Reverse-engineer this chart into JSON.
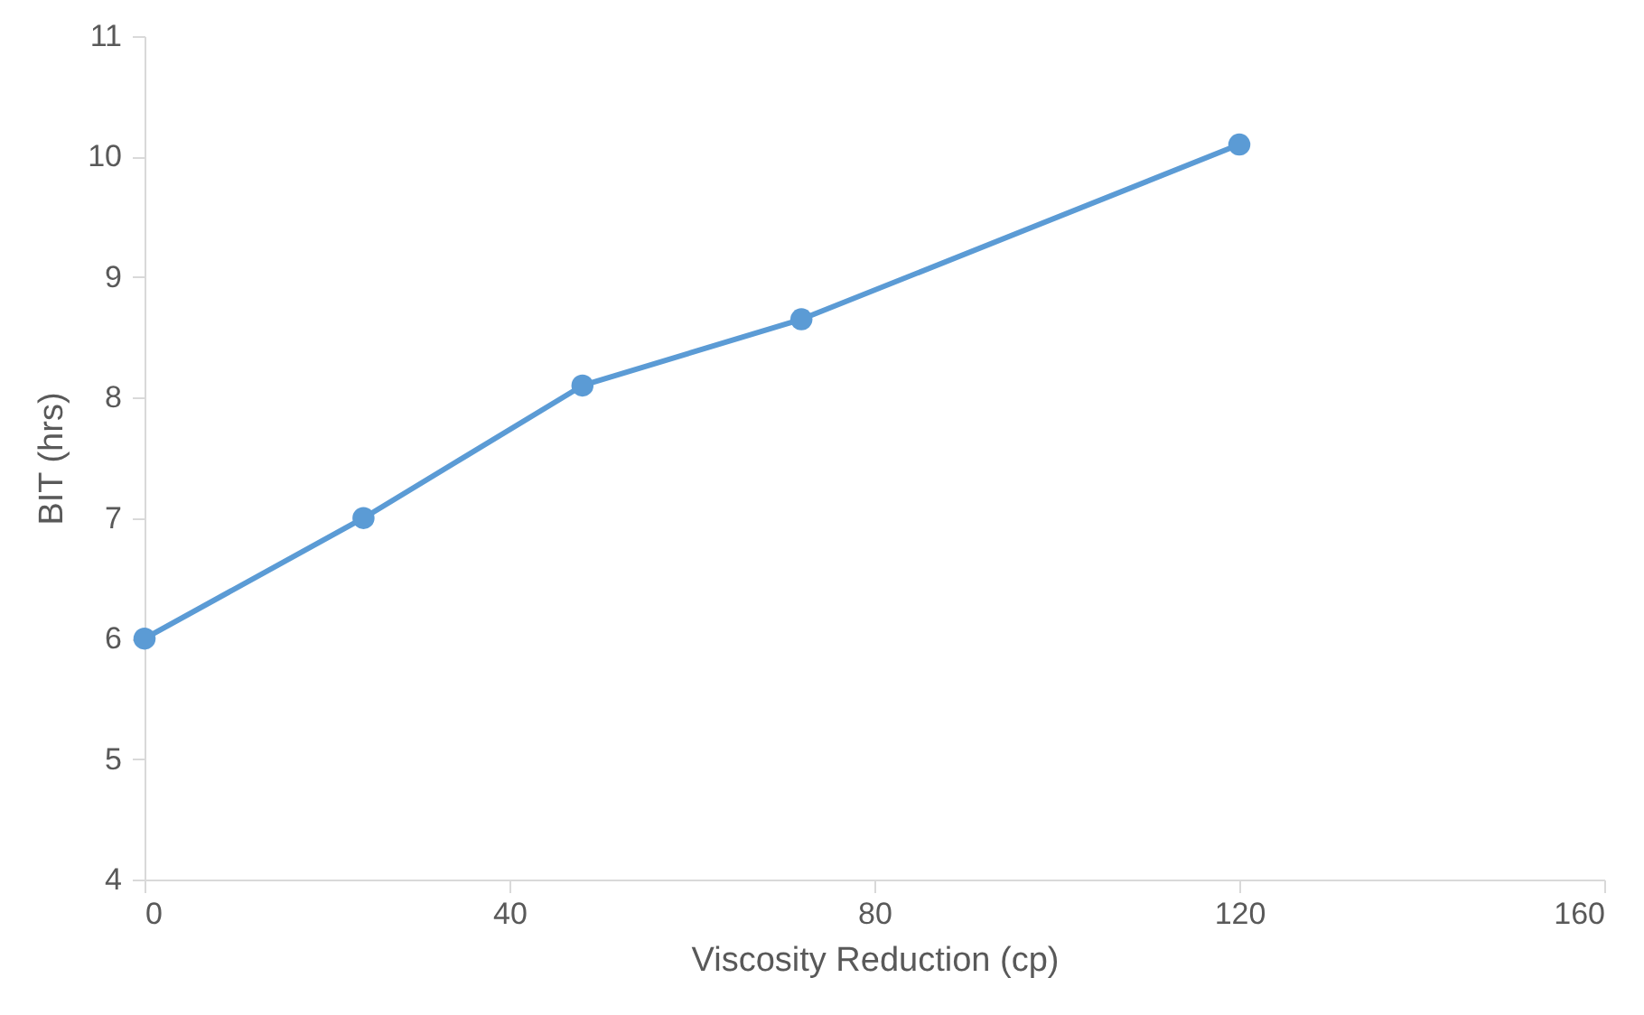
{
  "chart_data": {
    "type": "line",
    "xlabel": "Viscosity Reduction (cp)",
    "ylabel": "BIT (hrs)",
    "x": [
      0,
      24,
      48,
      72,
      120
    ],
    "series": [
      {
        "color": "#5b9bd5",
        "values": [
          6.0,
          7.0,
          8.1,
          8.65,
          10.1
        ]
      }
    ],
    "xlim": [
      0,
      160
    ],
    "xticks": [
      0,
      40,
      80,
      120,
      160
    ],
    "ylim": [
      4,
      11
    ],
    "yticks": [
      4,
      5,
      6,
      7,
      8,
      9,
      10,
      11
    ],
    "grid": false,
    "marker": "circle",
    "line_style": "solid"
  }
}
